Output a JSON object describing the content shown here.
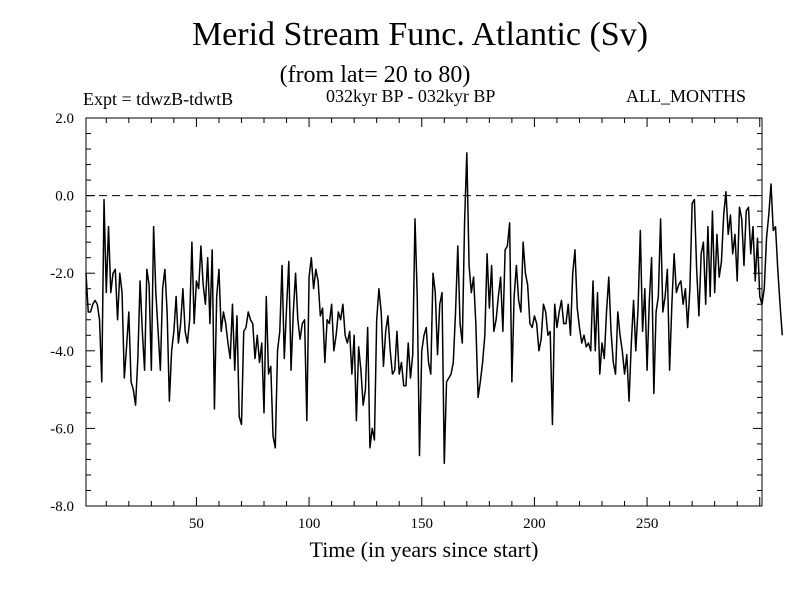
{
  "header": {
    "title": "Merid Stream Func. Atlantic (Sv)",
    "subtitle": "(from lat= 20 to 80)",
    "expt": "Expt = tdwzB-tdwtB",
    "period": "032kyr BP - 032kyr BP",
    "months": "ALL_MONTHS"
  },
  "chart_data": {
    "type": "line",
    "title": "Merid Stream Func. Atlantic (Sv)",
    "subtitle": "(from lat= 20 to 80)",
    "xlabel": "Time (in years since start)",
    "ylabel": "",
    "xlim": [
      1,
      301
    ],
    "ylim": [
      -8.0,
      2.0
    ],
    "x_ticks": [
      50,
      100,
      150,
      200,
      250
    ],
    "y_ticks": [
      2.0,
      0.0,
      -2.0,
      -4.0,
      -6.0,
      -8.0
    ],
    "y_tick_labels": [
      "2.0",
      "0.0",
      "-2.0",
      "-4.0",
      "-6.0",
      "-8.0"
    ],
    "reference_line": {
      "y": 0.0,
      "style": "dashed"
    },
    "grid": false,
    "color": "#000000",
    "series": [
      {
        "x_start": 1,
        "x_step": 1,
        "values": [
          -2.0,
          -3.0,
          -3.0,
          -2.8,
          -2.7,
          -2.8,
          -3.2,
          -4.8,
          -0.1,
          -2.5,
          -0.8,
          -2.5,
          -2.0,
          -1.9,
          -3.2,
          -2.0,
          -2.5,
          -4.7,
          -3.9,
          -3.0,
          -4.8,
          -5.0,
          -5.4,
          -4.2,
          -2.2,
          -3.5,
          -4.5,
          -1.9,
          -2.3,
          -4.5,
          -0.8,
          -2.5,
          -3.5,
          -4.5,
          -2.4,
          -1.9,
          -3.0,
          -5.3,
          -4.0,
          -3.5,
          -2.6,
          -3.8,
          -3.3,
          -2.4,
          -3.5,
          -3.8,
          -3.2,
          -1.2,
          -3.3,
          -2.2,
          -2.4,
          -1.3,
          -2.3,
          -2.8,
          -1.6,
          -3.3,
          -1.4,
          -5.5,
          -2.6,
          -1.9,
          -3.5,
          -3.0,
          -3.3,
          -3.8,
          -4.2,
          -2.8,
          -4.5,
          -3.1,
          -5.7,
          -5.9,
          -3.5,
          -3.4,
          -3.0,
          -3.2,
          -3.3,
          -4.2,
          -3.6,
          -4.3,
          -3.8,
          -5.6,
          -2.6,
          -4.6,
          -4.4,
          -6.2,
          -6.5,
          -4.0,
          -3.5,
          -1.8,
          -4.2,
          -2.9,
          -1.7,
          -4.5,
          -3.0,
          -2.0,
          -3.2,
          -3.7,
          -3.3,
          -3.2,
          -5.8,
          -2.1,
          -1.6,
          -2.4,
          -1.9,
          -2.2,
          -3.1,
          -2.9,
          -4.3,
          -3.2,
          -3.3,
          -2.8,
          -4.0,
          -3.6,
          -3.0,
          -3.2,
          -2.8,
          -3.6,
          -3.8,
          -3.5,
          -4.6,
          -3.6,
          -5.8,
          -3.9,
          -4.5,
          -5.4,
          -5.0,
          -3.4,
          -6.5,
          -6.0,
          -6.3,
          -3.2,
          -2.4,
          -3.0,
          -4.4,
          -3.5,
          -3.1,
          -4.0,
          -4.6,
          -4.5,
          -3.5,
          -4.6,
          -4.3,
          -4.9,
          -4.9,
          -3.8,
          -4.7,
          -4.1,
          -0.6,
          -2.6,
          -6.7,
          -4.0,
          -3.6,
          -3.4,
          -4.3,
          -4.6,
          -2.0,
          -2.5,
          -4.1,
          -2.8,
          -2.5,
          -6.9,
          -4.8,
          -4.7,
          -4.6,
          -4.3,
          -3.0,
          -1.3,
          -3.3,
          -3.8,
          -0.7,
          1.1,
          -1.8,
          -2.5,
          -2.1,
          -3.3,
          -5.2,
          -4.8,
          -4.3,
          -3.6,
          -1.5,
          -2.9,
          -1.8,
          -3.5,
          -3.2,
          -2.6,
          -2.1,
          -3.5,
          -1.4,
          -1.3,
          -0.7,
          -4.8,
          -2.6,
          -1.8,
          -2.7,
          -3.0,
          -1.2,
          -2.0,
          -2.3,
          -3.3,
          -3.4,
          -3.1,
          -3.3,
          -4.0,
          -3.7,
          -2.8,
          -3.0,
          -3.6,
          -3.5,
          -5.9,
          -2.8,
          -3.4,
          -3.0,
          -2.7,
          -3.3,
          -3.3,
          -2.8,
          -3.6,
          -2.0,
          -1.4,
          -2.9,
          -3.4,
          -3.8,
          -3.6,
          -3.9,
          -3.8,
          -4.0,
          -2.2,
          -4.0,
          -2.5,
          -4.6,
          -3.8,
          -4.2,
          -3.0,
          -2.1,
          -3.5,
          -4.3,
          -4.6,
          -3.0,
          -3.6,
          -4.0,
          -4.6,
          -4.1,
          -5.3,
          -3.8,
          -2.7,
          -4.0,
          -2.9,
          -0.9,
          -3.5,
          -2.4,
          -4.5,
          -2.7,
          -1.6,
          -5.1,
          -3.0,
          -2.6,
          -0.6,
          -3.0,
          -2.6,
          -1.9,
          -4.5,
          -2.8,
          -1.5,
          -2.5,
          -2.3,
          -2.2,
          -2.8,
          -2.4,
          -3.4,
          -2.4,
          -0.2,
          -0.1,
          -1.9,
          -3.1,
          -1.5,
          -1.2,
          -2.8,
          -0.8,
          -2.6,
          -0.4,
          -2.5,
          -1.0,
          -2.1,
          -1.7,
          -0.5,
          0.1,
          -1.0,
          -0.5,
          -1.5,
          -1.0,
          -2.2,
          -0.3,
          -0.6,
          -1.8,
          -0.4,
          -0.3,
          -1.5,
          -0.8,
          -2.2,
          -1.1,
          -2.6,
          -2.8,
          -2.4,
          -1.1,
          -0.5,
          0.3,
          -0.9,
          -0.8,
          -1.9,
          -2.8,
          -3.6
        ]
      }
    ]
  }
}
